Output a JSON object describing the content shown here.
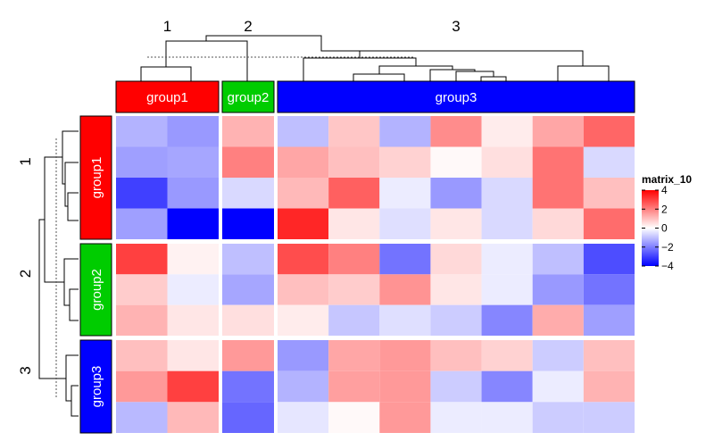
{
  "chart_data": {
    "type": "heatmap",
    "legend": {
      "title": "matrix_10",
      "ticks": [
        4,
        2,
        0,
        -2,
        -4
      ],
      "tick_labels": [
        "4",
        "2",
        "0",
        "−2",
        "−4"
      ],
      "range": [
        -4,
        4
      ],
      "colors": {
        "low": "#0000ff",
        "mid": "#ffffff",
        "high": "#ff0000"
      }
    },
    "column_groups": [
      {
        "split": "1",
        "label": "group1",
        "color": "#ff0000",
        "n_cols": 2
      },
      {
        "split": "2",
        "label": "group2",
        "color": "#00cc00",
        "n_cols": 1
      },
      {
        "split": "3",
        "label": "group3",
        "color": "#0000ff",
        "n_cols": 7
      }
    ],
    "row_groups": [
      {
        "split": "1",
        "label": "group1",
        "color": "#ff0000",
        "n_rows": 4
      },
      {
        "split": "2",
        "label": "group2",
        "color": "#00cc00",
        "n_rows": 3
      },
      {
        "split": "3",
        "label": "group3",
        "color": "#0000ff",
        "n_rows": 3
      }
    ],
    "values": [
      [
        -1.2,
        -1.6,
        1.2,
        -1.0,
        0.9,
        -1.2,
        1.8,
        0.3,
        1.4,
        2.4
      ],
      [
        -1.5,
        -1.4,
        2.0,
        1.4,
        1.0,
        0.7,
        0.1,
        0.5,
        2.2,
        -0.6
      ],
      [
        -3.0,
        -1.6,
        -0.6,
        1.1,
        2.5,
        -0.3,
        -1.6,
        -0.6,
        2.2,
        1.0
      ],
      [
        -1.5,
        -4.0,
        -4.0,
        3.4,
        0.4,
        -0.5,
        0.4,
        -0.6,
        0.6,
        2.3
      ],
      [
        3.0,
        0.2,
        -1.0,
        2.8,
        2.0,
        -2.2,
        0.6,
        -0.3,
        -1.0,
        -2.8
      ],
      [
        0.8,
        -0.3,
        -1.4,
        1.0,
        0.8,
        1.7,
        0.4,
        -0.3,
        -1.6,
        -2.2
      ],
      [
        1.2,
        0.4,
        0.5,
        0.3,
        -0.9,
        -0.5,
        -0.8,
        -1.9,
        1.3,
        -1.5
      ],
      [
        1.0,
        0.4,
        1.6,
        -1.6,
        1.4,
        1.6,
        1.0,
        0.7,
        -0.8,
        1.0
      ],
      [
        1.6,
        3.0,
        -2.2,
        -1.2,
        1.5,
        1.6,
        -0.8,
        -1.9,
        -0.3,
        1.2
      ],
      [
        -1.1,
        1.1,
        -2.4,
        -0.4,
        0.1,
        1.6,
        -0.3,
        -0.3,
        -0.8,
        -0.8
      ]
    ]
  }
}
